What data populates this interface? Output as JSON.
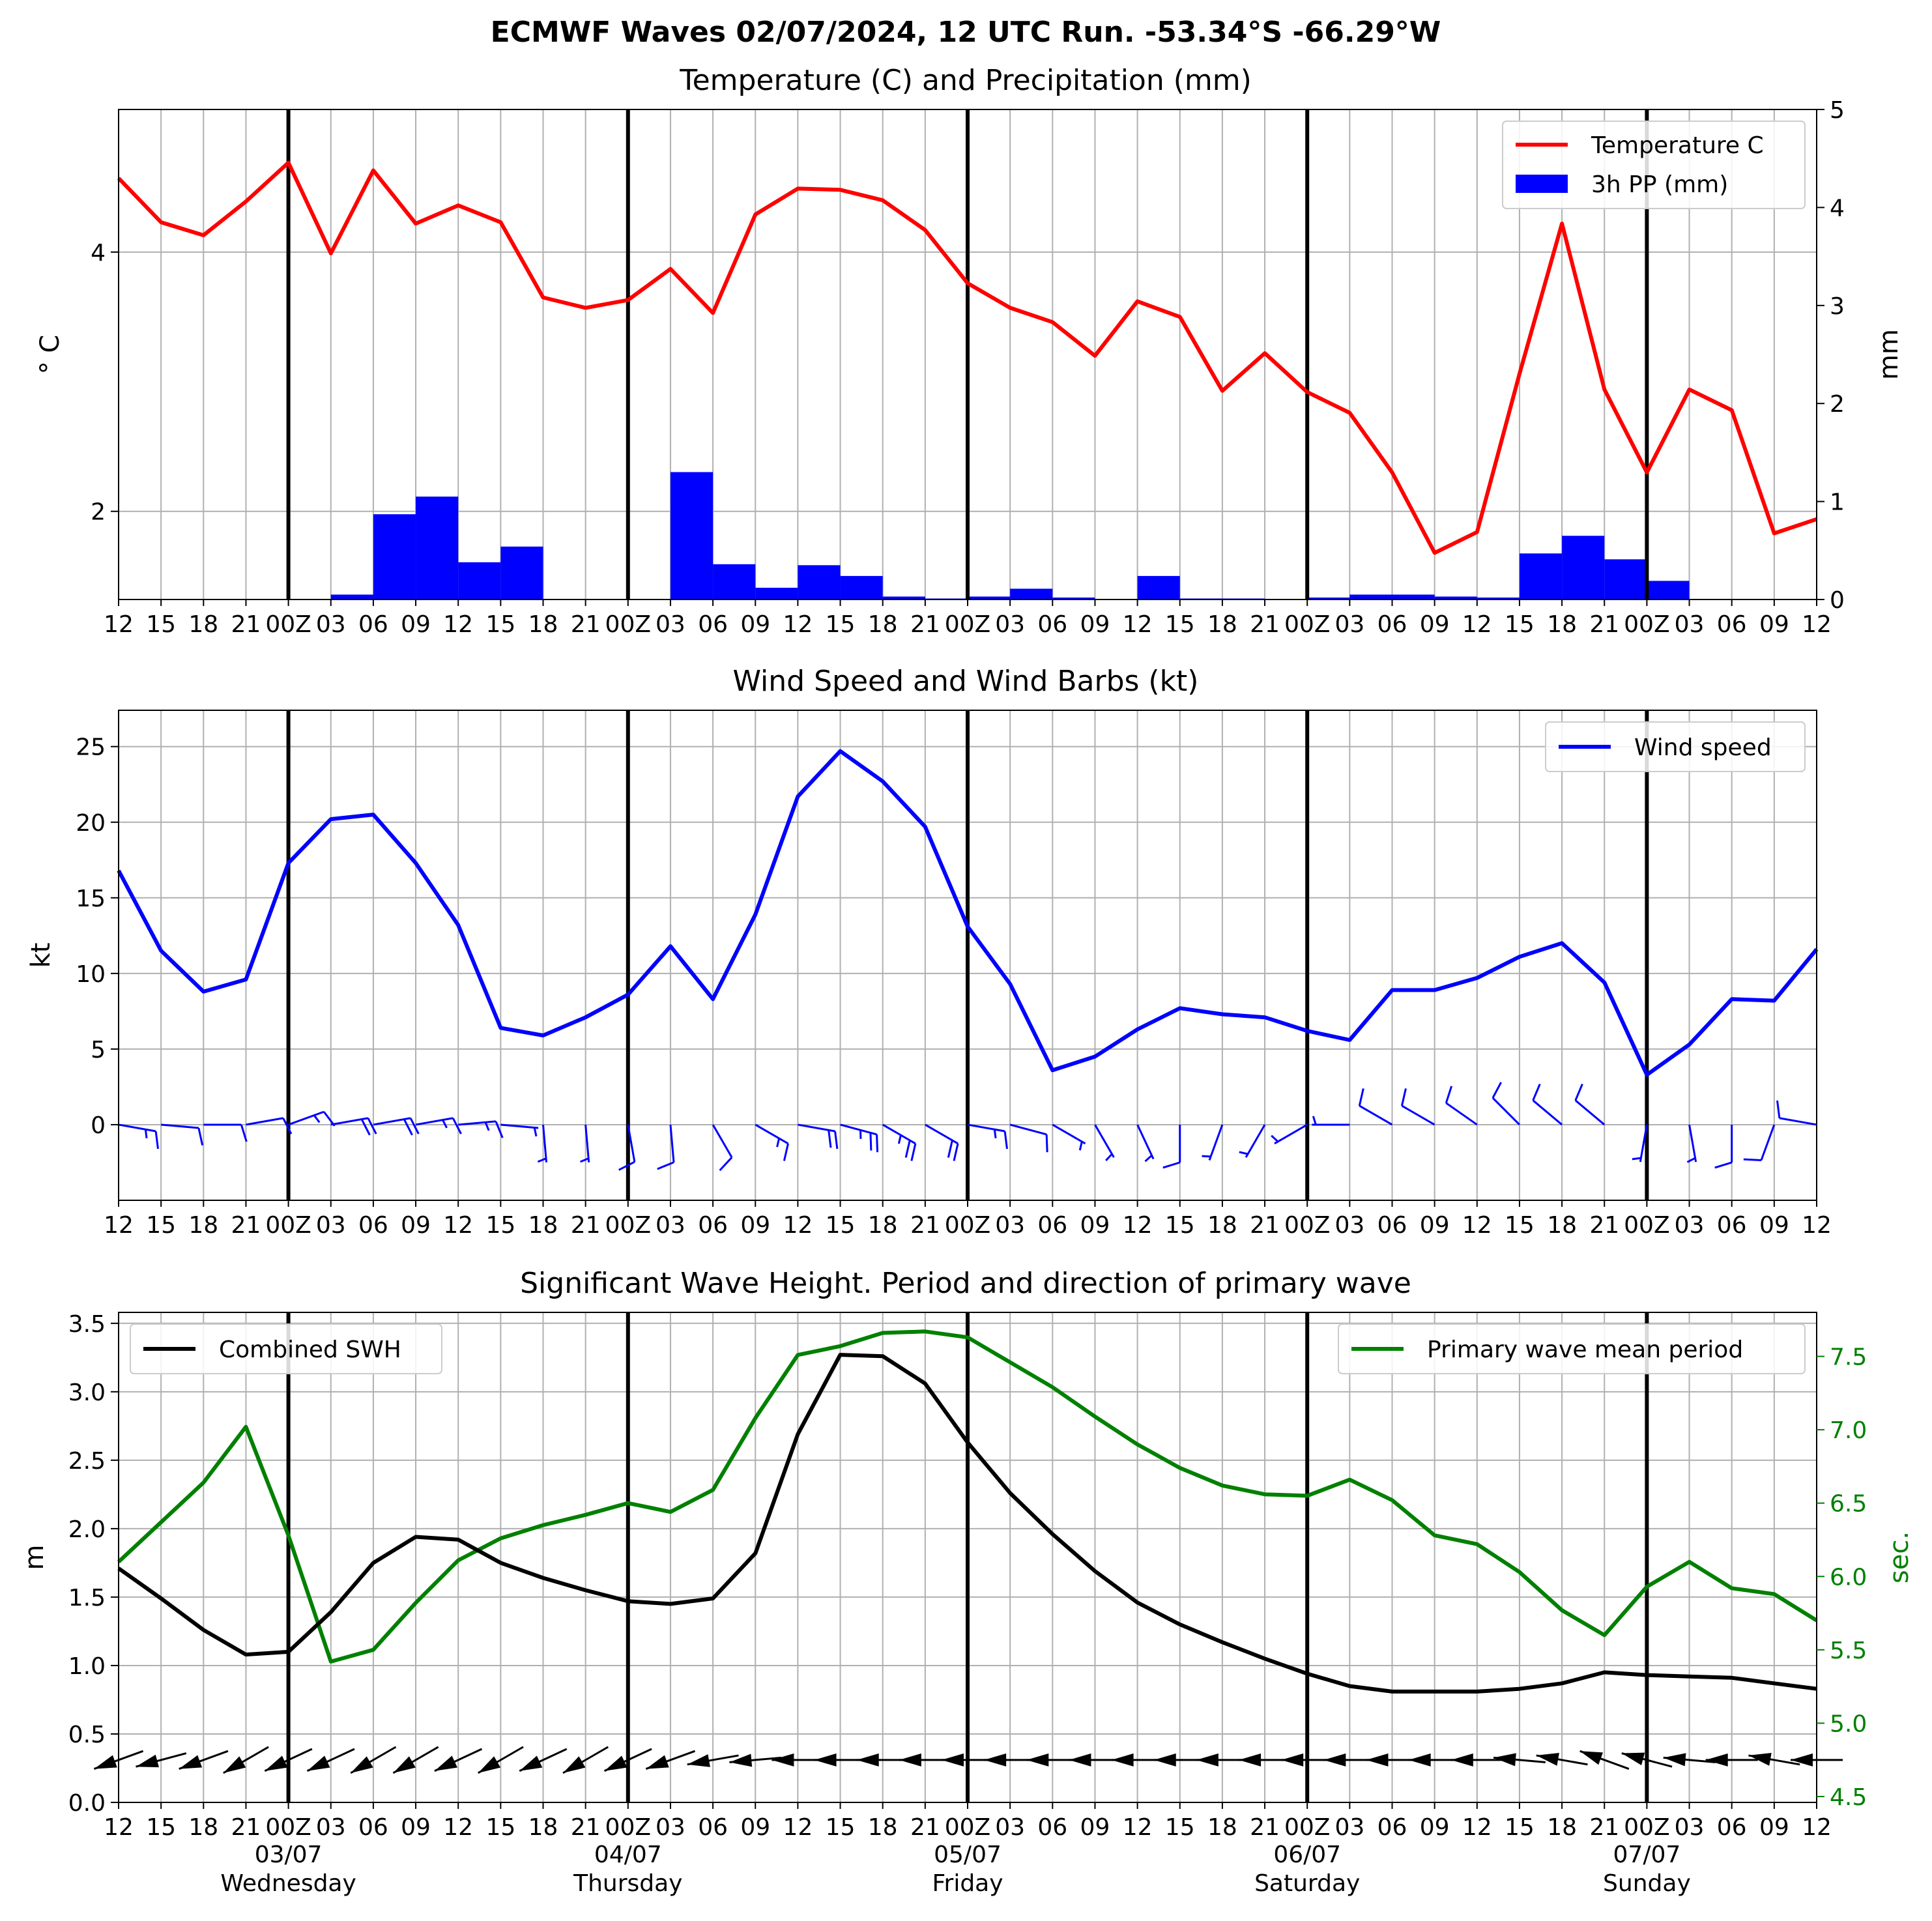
{
  "figure_title": "ECMWF Waves 02/07/2024, 12 UTC Run. -53.34°S -66.29°W",
  "time_tick_labels": [
    "12",
    "15",
    "18",
    "21",
    "00Z",
    "03",
    "06",
    "09",
    "12",
    "15",
    "18",
    "21",
    "00Z",
    "03",
    "06",
    "09",
    "12",
    "15",
    "18",
    "21",
    "00Z",
    "03",
    "06",
    "09",
    "12",
    "15",
    "18",
    "21",
    "00Z",
    "03",
    "06",
    "09",
    "12",
    "15",
    "18",
    "21",
    "00Z",
    "03",
    "06",
    "09",
    "12"
  ],
  "day_labels": [
    {
      "date": "03/07",
      "day": "Wednesday"
    },
    {
      "date": "04/07",
      "day": "Thursday"
    },
    {
      "date": "05/07",
      "day": "Friday"
    },
    {
      "date": "06/07",
      "day": "Saturday"
    },
    {
      "date": "07/07",
      "day": "Sunday"
    }
  ],
  "colors": {
    "temperature": "#ff0000",
    "precip": "#0000ff",
    "wind": "#0000ff",
    "swh": "#000000",
    "period": "#008000",
    "grid": "#b0b0b0"
  },
  "chart_data": [
    {
      "type": "line",
      "title": "Temperature (C) and Precipitation (mm)",
      "ylabel": "$^\\circ$C",
      "ylabel_display": "° C",
      "ylabel_right": "mm",
      "x_unit": "hours from 02/07/2024 12 UTC",
      "xlim": [
        0,
        120
      ],
      "ylim_left": [
        1.32,
        5.1
      ],
      "ylim_right": [
        0,
        5
      ],
      "yticks_left": [
        2,
        4
      ],
      "yticks_right": [
        0,
        1,
        2,
        3,
        4,
        5
      ],
      "grid": true,
      "legend_position": "top-right",
      "series": [
        {
          "name": "Temperature C",
          "axis": "left",
          "x": [
            0,
            3,
            6,
            9,
            12,
            15,
            18,
            21,
            24,
            27,
            30,
            33,
            36,
            39,
            42,
            45,
            48,
            51,
            54,
            57,
            60,
            63,
            66,
            69,
            72,
            75,
            78,
            81,
            84,
            87,
            90,
            93,
            96,
            99,
            102,
            105,
            108,
            111,
            114,
            117,
            120
          ],
          "values": [
            4.57,
            4.23,
            4.13,
            4.39,
            4.69,
            3.99,
            4.63,
            4.22,
            4.36,
            4.23,
            3.65,
            3.57,
            3.63,
            3.87,
            3.53,
            4.29,
            4.49,
            4.48,
            4.4,
            4.17,
            3.76,
            3.57,
            3.46,
            3.2,
            3.62,
            3.5,
            2.93,
            3.22,
            2.92,
            2.76,
            2.3,
            1.68,
            1.84,
            3.06,
            4.22,
            2.94,
            2.3,
            2.94,
            2.78,
            1.83,
            1.94
          ]
        },
        {
          "name": "3h PP (mm)",
          "type": "bar",
          "axis": "right",
          "x": [
            16.5,
            19.5,
            22.5,
            25.5,
            28.5,
            40.5,
            43.5,
            46.5,
            49.5,
            52.5,
            55.5,
            58.5,
            61.5,
            64.5,
            67.5,
            70.5,
            73.5,
            76.5,
            79.5,
            82.5,
            85.5,
            88.5,
            91.5,
            94.5,
            97.5,
            100.5,
            103.5,
            106.5,
            109.5,
            112.5,
            115.5
          ],
          "values": [
            0.05,
            0.87,
            1.05,
            0.38,
            0.54,
            1.3,
            0.36,
            0.12,
            0.35,
            0.24,
            0.03,
            0.01,
            0.03,
            0.11,
            0.02,
            0.0,
            0.24,
            0.01,
            0.01,
            0.0,
            0.02,
            0.05,
            0.05,
            0.03,
            0.02,
            0.47,
            0.65,
            0.41,
            0.19,
            0.0,
            0.0
          ]
        }
      ]
    },
    {
      "type": "line",
      "title": "Wind Speed and Wind Barbs (kt)",
      "ylabel": "kt",
      "x_unit": "hours from 02/07/2024 12 UTC",
      "xlim": [
        0,
        120
      ],
      "ylim": [
        -5,
        27.4
      ],
      "yticks": [
        0,
        5,
        10,
        15,
        20,
        25
      ],
      "grid": true,
      "legend_position": "top-right",
      "series": [
        {
          "name": "Wind speed",
          "x": [
            0,
            3,
            6,
            9,
            12,
            15,
            18,
            21,
            24,
            27,
            30,
            33,
            36,
            39,
            42,
            45,
            48,
            51,
            54,
            57,
            60,
            63,
            66,
            69,
            72,
            75,
            78,
            81,
            84,
            87,
            90,
            93,
            96,
            99,
            102,
            105,
            108,
            111,
            114,
            117,
            120
          ],
          "values": [
            16.8,
            11.5,
            8.8,
            9.6,
            17.3,
            20.2,
            20.5,
            17.3,
            13.2,
            6.4,
            5.9,
            7.1,
            8.6,
            11.8,
            8.3,
            13.9,
            21.7,
            24.7,
            22.7,
            19.7,
            13.1,
            9.3,
            3.6,
            4.5,
            6.3,
            7.7,
            7.3,
            7.1,
            6.2,
            5.6,
            8.9,
            8.9,
            9.7,
            11.1,
            12.0,
            9.4,
            3.3,
            5.3,
            8.3,
            8.2,
            11.6
          ]
        }
      ],
      "barb_directions_deg": [
        100,
        95,
        90,
        80,
        70,
        80,
        80,
        80,
        85,
        95,
        175,
        175,
        170,
        175,
        150,
        120,
        100,
        105,
        120,
        120,
        100,
        105,
        120,
        150,
        155,
        180,
        200,
        210,
        240,
        270,
        300,
        300,
        305,
        315,
        310,
        310,
        190,
        170,
        180,
        200,
        280
      ]
    },
    {
      "type": "line",
      "title": "Significant Wave Height. Period and direction of primary wave",
      "ylabel": "m",
      "ylabel_right": "sec.",
      "x_unit": "hours from 02/07/2024 12 UTC",
      "xlim": [
        0,
        120
      ],
      "ylim_left": [
        0,
        3.58
      ],
      "ylim_right": [
        4.46,
        7.8
      ],
      "yticks_left": [
        0.0,
        0.5,
        1.0,
        1.5,
        2.0,
        2.5,
        3.0,
        3.5
      ],
      "yticks_right": [
        4.5,
        5.0,
        5.5,
        6.0,
        6.5,
        7.0,
        7.5
      ],
      "grid": true,
      "series": [
        {
          "name": "Combined SWH",
          "axis": "left",
          "legend_position": "top-left",
          "x": [
            0,
            3,
            6,
            9,
            12,
            15,
            18,
            21,
            24,
            27,
            30,
            33,
            36,
            39,
            42,
            45,
            48,
            51,
            54,
            57,
            60,
            63,
            66,
            69,
            72,
            75,
            78,
            81,
            84,
            87,
            90,
            93,
            96,
            99,
            102,
            105,
            108,
            111,
            114,
            117,
            120
          ],
          "values": [
            1.71,
            1.49,
            1.26,
            1.08,
            1.1,
            1.39,
            1.75,
            1.94,
            1.92,
            1.75,
            1.64,
            1.55,
            1.47,
            1.45,
            1.49,
            1.82,
            2.69,
            3.27,
            3.26,
            3.06,
            2.63,
            2.26,
            1.96,
            1.69,
            1.46,
            1.3,
            1.17,
            1.05,
            0.94,
            0.85,
            0.81,
            0.81,
            0.81,
            0.83,
            0.87,
            0.95,
            0.93,
            0.92,
            0.91,
            0.87,
            0.83
          ]
        },
        {
          "name": "Primary wave mean period",
          "axis": "right",
          "legend_position": "top-right",
          "x": [
            0,
            3,
            6,
            9,
            12,
            15,
            18,
            21,
            24,
            27,
            30,
            33,
            36,
            39,
            42,
            45,
            48,
            51,
            54,
            57,
            60,
            63,
            66,
            69,
            72,
            75,
            78,
            81,
            84,
            87,
            90,
            93,
            96,
            99,
            102,
            105,
            108,
            111,
            114,
            117,
            120
          ],
          "values": [
            6.1,
            6.37,
            6.64,
            7.02,
            6.28,
            5.42,
            5.5,
            5.82,
            6.11,
            6.26,
            6.35,
            6.42,
            6.5,
            6.44,
            6.59,
            7.08,
            7.51,
            7.57,
            7.66,
            7.67,
            7.63,
            7.46,
            7.29,
            7.09,
            6.9,
            6.74,
            6.62,
            6.56,
            6.55,
            6.66,
            6.52,
            6.28,
            6.22,
            6.03,
            5.77,
            5.6,
            5.93,
            6.1,
            5.92,
            5.88,
            5.7
          ]
        }
      ],
      "arrow_directions_deg": [
        20,
        15,
        20,
        30,
        25,
        25,
        30,
        30,
        25,
        30,
        25,
        30,
        25,
        20,
        10,
        5,
        0,
        0,
        0,
        0,
        0,
        0,
        0,
        0,
        0,
        0,
        0,
        0,
        0,
        0,
        0,
        0,
        0,
        355,
        350,
        340,
        345,
        355,
        0,
        350,
        0
      ]
    }
  ]
}
